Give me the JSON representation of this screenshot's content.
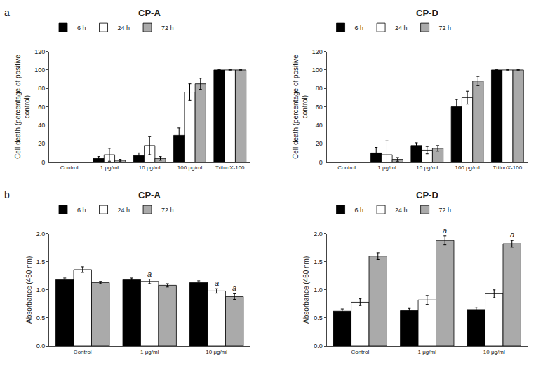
{
  "chart_data": [
    {
      "type": "bar",
      "panel_label": "a",
      "title": "CP-A",
      "categories": [
        "Control",
        "1 μg/ml",
        "10 μg/ml",
        "100 μg/ml",
        "TritonX-100"
      ],
      "ylabel": "Cell death (percentage of positive\ncontrol)",
      "ylim": [
        0,
        120
      ],
      "yticks": [
        0,
        20,
        40,
        60,
        80,
        100,
        120
      ],
      "grid": false,
      "legend": "upper left",
      "series": [
        {
          "name": "6 h",
          "color": "#000000",
          "values": [
            0,
            4,
            7,
            29,
            100
          ],
          "errors": [
            0,
            2,
            3,
            8,
            0
          ]
        },
        {
          "name": "24 h",
          "color": "#ffffff",
          "values": [
            0,
            8,
            18,
            76,
            100
          ],
          "errors": [
            0,
            7,
            10,
            9,
            0
          ]
        },
        {
          "name": "72 h",
          "color": "#aaaaaa",
          "values": [
            0,
            2,
            4,
            85,
            100
          ],
          "errors": [
            0,
            1,
            2,
            6,
            0
          ]
        }
      ]
    },
    {
      "type": "bar",
      "title": "CP-D",
      "categories": [
        "Control",
        "1 μg/ml",
        "10 μg/ml",
        "100 μg/ml",
        "TritonX-100"
      ],
      "ylabel": "Cell death (percentage of positive\ncontrol)",
      "ylim": [
        0,
        120
      ],
      "yticks": [
        0,
        20,
        40,
        60,
        80,
        100,
        120
      ],
      "grid": false,
      "legend": "upper left",
      "series": [
        {
          "name": "6 h",
          "color": "#000000",
          "values": [
            0,
            10,
            18,
            60,
            100
          ],
          "errors": [
            0,
            6,
            3,
            8,
            0
          ]
        },
        {
          "name": "24 h",
          "color": "#ffffff",
          "values": [
            0,
            8,
            13,
            70,
            100
          ],
          "errors": [
            0,
            15,
            4,
            7,
            0
          ]
        },
        {
          "name": "72 h",
          "color": "#aaaaaa",
          "values": [
            0,
            3,
            15,
            88,
            100
          ],
          "errors": [
            0,
            2,
            3,
            5,
            0
          ]
        }
      ]
    },
    {
      "type": "bar",
      "panel_label": "b",
      "title": "CP-A",
      "categories": [
        "Control",
        "1 μg/ml",
        "10 μg/ml"
      ],
      "ylabel": "Absorbance (450 nm)",
      "ylim": [
        0,
        2
      ],
      "yticks": [
        {
          "value": 0,
          "label": "0.0"
        },
        0.5,
        {
          "value": 1,
          "label": "1.0"
        },
        1.5,
        {
          "value": 2,
          "label": "2.0"
        }
      ],
      "grid": false,
      "legend": "upper left",
      "series": [
        {
          "name": "6 h",
          "color": "#000000",
          "values": [
            1.18,
            1.18,
            1.13
          ],
          "errors": [
            0.03,
            0.03,
            0.03
          ]
        },
        {
          "name": "24 h",
          "color": "#ffffff",
          "values": [
            1.36,
            1.15,
            0.98
          ],
          "errors": [
            0.05,
            0.04,
            0.04
          ]
        },
        {
          "name": "72 h",
          "color": "#aaaaaa",
          "values": [
            1.13,
            1.08,
            0.88
          ],
          "errors": [
            0.02,
            0.03,
            0.05
          ]
        }
      ],
      "annotations": [
        {
          "text": "a",
          "category": "1 μg/ml",
          "series": "24 h"
        },
        {
          "text": "a",
          "category": "10 μg/ml",
          "series": "24 h"
        },
        {
          "text": "a",
          "category": "10 μg/ml",
          "series": "72 h"
        }
      ]
    },
    {
      "type": "bar",
      "title": "CP-D",
      "categories": [
        "Control",
        "1 μg/ml",
        "10 μg/ml"
      ],
      "ylabel": "Absorbance (450 nm)",
      "ylim": [
        0,
        2
      ],
      "yticks": [
        {
          "value": 0,
          "label": "0.0"
        },
        0.5,
        {
          "value": 1,
          "label": "1.0"
        },
        1.5,
        {
          "value": 2,
          "label": "2.0"
        }
      ],
      "grid": false,
      "legend": "upper left",
      "series": [
        {
          "name": "6 h",
          "color": "#000000",
          "values": [
            0.62,
            0.63,
            0.65
          ],
          "errors": [
            0.04,
            0.04,
            0.04
          ]
        },
        {
          "name": "24 h",
          "color": "#ffffff",
          "values": [
            0.78,
            0.82,
            0.93
          ],
          "errors": [
            0.06,
            0.08,
            0.07
          ]
        },
        {
          "name": "72 h",
          "color": "#aaaaaa",
          "values": [
            1.6,
            1.88,
            1.82
          ],
          "errors": [
            0.06,
            0.08,
            0.06
          ]
        }
      ],
      "annotations": [
        {
          "text": "a",
          "category": "1 μg/ml",
          "series": "72 h"
        },
        {
          "text": "a",
          "category": "10 μg/ml",
          "series": "72 h"
        }
      ]
    }
  ]
}
